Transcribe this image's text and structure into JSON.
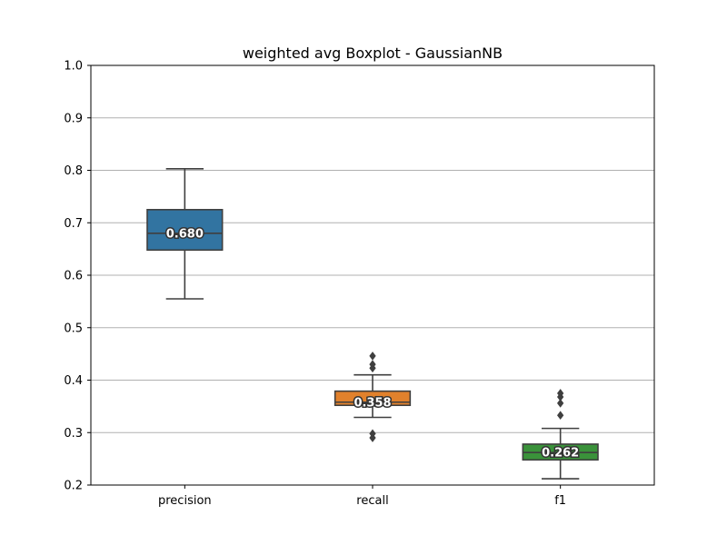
{
  "chart_data": {
    "type": "boxplot",
    "title": "weighted avg Boxplot - GaussianNB",
    "xlabel": "",
    "ylabel": "",
    "ylim": [
      0.2,
      1.0
    ],
    "yticks": [
      "0.2",
      "0.3",
      "0.4",
      "0.5",
      "0.6",
      "0.7",
      "0.8",
      "0.9",
      "1.0"
    ],
    "grid": "horizontal",
    "categories": [
      "precision",
      "recall",
      "f1"
    ],
    "boxes": [
      {
        "name": "precision",
        "color": "#3274a1",
        "whisker_low": 0.555,
        "q1": 0.648,
        "median": 0.68,
        "q3": 0.725,
        "whisker_high": 0.803,
        "outliers": [],
        "median_label": "0.680"
      },
      {
        "name": "recall",
        "color": "#e1812c",
        "whisker_low": 0.329,
        "q1": 0.352,
        "median": 0.358,
        "q3": 0.379,
        "whisker_high": 0.41,
        "outliers": [
          0.29,
          0.298,
          0.423,
          0.43,
          0.446
        ],
        "median_label": "0.358"
      },
      {
        "name": "f1",
        "color": "#3a923a",
        "whisker_low": 0.212,
        "q1": 0.248,
        "median": 0.262,
        "q3": 0.278,
        "whisker_high": 0.308,
        "outliers": [
          0.333,
          0.356,
          0.368,
          0.375
        ],
        "median_label": "0.262"
      }
    ]
  }
}
